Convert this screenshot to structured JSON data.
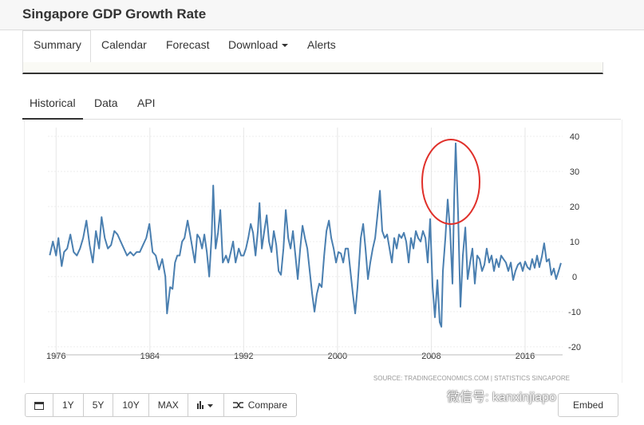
{
  "header": {
    "title": "Singapore GDP Growth Rate"
  },
  "nav": [
    "Summary",
    "Calendar",
    "Forecast",
    "Download",
    "Alerts"
  ],
  "tabs": [
    "Historical",
    "Data",
    "API"
  ],
  "chart_data": {
    "type": "line",
    "color": "#4a7fb0",
    "grid": true,
    "xlim": [
      1975.3,
      2019.2
    ],
    "xticks": [
      1976,
      1984,
      1992,
      2000,
      2008,
      2016
    ],
    "ylim": [
      -22.3,
      42.5
    ],
    "yticks": [
      40,
      30,
      20,
      10,
      0,
      -10,
      -20
    ],
    "x": [
      1975.46,
      1975.73,
      1976.0,
      1976.2,
      1976.48,
      1976.68,
      1976.95,
      1977.22,
      1977.5,
      1977.77,
      1978.04,
      1978.31,
      1978.59,
      1978.86,
      1979.13,
      1979.4,
      1979.67,
      1979.88,
      1980.15,
      1980.42,
      1980.69,
      1980.97,
      1981.24,
      1981.51,
      1981.78,
      1982.05,
      1982.33,
      1982.6,
      1982.87,
      1983.14,
      1983.41,
      1983.69,
      1983.96,
      1984.23,
      1984.5,
      1984.78,
      1985.05,
      1985.32,
      1985.46,
      1985.73,
      1985.93,
      1986.14,
      1986.34,
      1986.54,
      1986.75,
      1986.95,
      1987.22,
      1987.43,
      1987.63,
      1987.84,
      1988.04,
      1988.24,
      1988.45,
      1988.65,
      1988.86,
      1989.06,
      1989.27,
      1989.4,
      1989.61,
      1989.81,
      1990.01,
      1990.22,
      1990.49,
      1990.69,
      1990.9,
      1991.1,
      1991.31,
      1991.58,
      1991.78,
      1991.99,
      1992.19,
      1992.39,
      1992.6,
      1992.8,
      1993.01,
      1993.21,
      1993.35,
      1993.55,
      1993.76,
      1993.96,
      1994.16,
      1994.37,
      1994.57,
      1994.78,
      1994.98,
      1995.18,
      1995.39,
      1995.59,
      1995.8,
      1996.0,
      1996.2,
      1996.41,
      1996.61,
      1996.82,
      1997.02,
      1997.22,
      1997.43,
      1997.63,
      1997.84,
      1998.04,
      1998.24,
      1998.45,
      1998.65,
      1998.86,
      1999.06,
      1999.27,
      1999.47,
      1999.67,
      1999.88,
      2000.08,
      2000.29,
      2000.49,
      2000.69,
      2000.9,
      2001.1,
      2001.31,
      2001.51,
      2001.71,
      2001.99,
      2002.19,
      2002.39,
      2002.6,
      2002.8,
      2003.01,
      2003.21,
      2003.41,
      2003.62,
      2003.82,
      2004.03,
      2004.23,
      2004.44,
      2004.64,
      2004.84,
      2005.05,
      2005.25,
      2005.46,
      2005.66,
      2005.86,
      2006.07,
      2006.27,
      2006.48,
      2006.68,
      2006.88,
      2007.09,
      2007.29,
      2007.5,
      2007.7,
      2007.9,
      2008.11,
      2008.31,
      2008.52,
      2008.72,
      2008.86,
      2008.99,
      2009.2,
      2009.4,
      2009.61,
      2009.81,
      2009.95,
      2010.08,
      2010.29,
      2010.49,
      2010.69,
      2010.9,
      2011.1,
      2011.31,
      2011.51,
      2011.71,
      2011.92,
      2012.12,
      2012.33,
      2012.53,
      2012.73,
      2012.94,
      2013.14,
      2013.35,
      2013.55,
      2013.76,
      2013.96,
      2014.16,
      2014.37,
      2014.57,
      2014.78,
      2014.98,
      2015.18,
      2015.39,
      2015.59,
      2015.8,
      2016.0,
      2016.2,
      2016.41,
      2016.61,
      2016.82,
      2017.02,
      2017.22,
      2017.43,
      2017.63,
      2017.84,
      2018.04,
      2018.24,
      2018.45,
      2018.65,
      2018.86,
      2019.06
    ],
    "values": [
      6.1,
      10,
      6,
      11,
      3,
      7,
      8,
      12,
      7,
      6,
      8,
      11,
      16,
      9,
      4,
      13,
      8,
      17,
      11,
      8,
      9,
      13,
      12,
      10,
      8,
      6,
      7,
      6,
      7,
      7,
      9,
      11,
      15,
      7,
      6,
      2,
      5,
      0,
      -10.5,
      -3,
      -3.5,
      4,
      6,
      6,
      10,
      11,
      16,
      12,
      8,
      4,
      12,
      11,
      8,
      12,
      7,
      0,
      12,
      26,
      8,
      12.5,
      19,
      4,
      6,
      4,
      7,
      10,
      4,
      8,
      6,
      6,
      8,
      11,
      15,
      12.5,
      6,
      13,
      21,
      8,
      13,
      17.5,
      10,
      7,
      13,
      9,
      1.6,
      0.5,
      8,
      19,
      11,
      8,
      13,
      6,
      -0.7,
      8,
      14.5,
      11,
      8,
      1.6,
      -5,
      -10,
      -5,
      -2,
      -3,
      6,
      13,
      16,
      11,
      8,
      4,
      7,
      6.6,
      4,
      8,
      8,
      1.6,
      -5,
      -10.5,
      -3,
      11,
      15,
      8,
      -0.7,
      4,
      8,
      11,
      17.5,
      24.5,
      13,
      11,
      12,
      8,
      4,
      11,
      8,
      12,
      11,
      12.5,
      10,
      4,
      11,
      8,
      13,
      11,
      10,
      13,
      11,
      4,
      16.4,
      -3,
      -11.6,
      -1,
      -13,
      -14.3,
      1.6,
      11,
      22,
      13,
      -2,
      22,
      38,
      17.5,
      -8.6,
      6,
      14,
      -0.7,
      4,
      8,
      -2,
      6,
      5,
      1.6,
      3.4,
      8,
      4,
      6,
      1.6,
      5,
      2.7,
      6,
      5,
      4,
      1.6,
      4,
      -1,
      1.6,
      3.4,
      4,
      1.6,
      4.3,
      2.7,
      2,
      5,
      2.5,
      6,
      2.7,
      5.7,
      9.5,
      4.3,
      5,
      0.5,
      2.3,
      -0.7,
      1.6,
      3.9
    ]
  },
  "source": "SOURCE: TRADINGECONOMICS.COM  |  STATISTICS SINGAPORE",
  "buttons": [
    "1Y",
    "5Y",
    "10Y",
    "MAX",
    "Compare"
  ],
  "embed": "Embed",
  "watermark": "微信号: kanxinjiapo"
}
